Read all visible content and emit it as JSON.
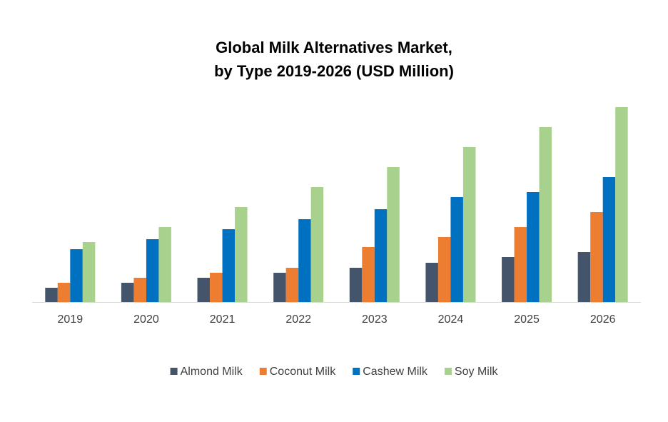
{
  "chart_data": {
    "type": "bar",
    "title_lines": [
      "Global Milk Alternatives Market,",
      "by Type 2019-2026 (USD Million)"
    ],
    "categories": [
      "2019",
      "2020",
      "2021",
      "2022",
      "2023",
      "2024",
      "2025",
      "2026"
    ],
    "series": [
      {
        "name": "Almond Milk",
        "color": "#44546a",
        "values": [
          20,
          27,
          34,
          41,
          48,
          55,
          63,
          70
        ]
      },
      {
        "name": "Coconut Milk",
        "color": "#ed7d31",
        "values": [
          27,
          34,
          41,
          48,
          77,
          91,
          105,
          126
        ]
      },
      {
        "name": "Cashew Milk",
        "color": "#0070c0",
        "values": [
          74,
          88,
          102,
          116,
          130,
          147,
          154,
          175
        ]
      },
      {
        "name": "Soy Milk",
        "color": "#a9d18e",
        "values": [
          84,
          105,
          133,
          161,
          189,
          217,
          245,
          273
        ]
      }
    ],
    "legend": "bottom"
  }
}
